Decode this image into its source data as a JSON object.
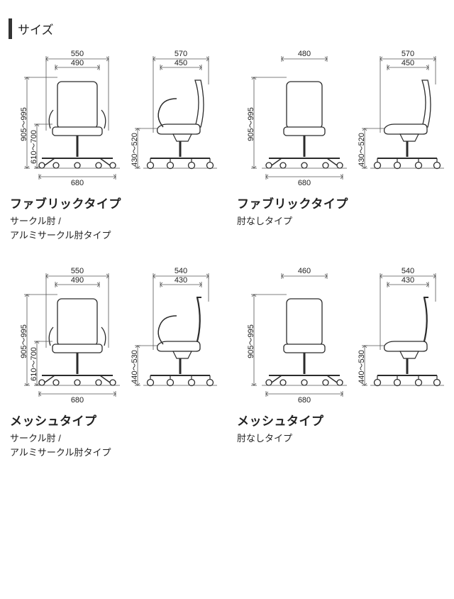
{
  "title": "サイズ",
  "stroke_color": "#2b2b2b",
  "fill_color": "#ffffff",
  "dim_stroke": "#555555",
  "dim_text_color": "#222222",
  "line_width_main": 1.3,
  "line_width_dim": 0.8,
  "dim_fontsize": 11,
  "cells": [
    {
      "name": "ファブリックタイプ",
      "sub": "サークル肘 /\nアルミサークル肘タイプ",
      "has_arm": true,
      "is_mesh": false,
      "front": {
        "top_outer": 550,
        "top_inner": 490,
        "base": 680,
        "h_outer": "905～995",
        "h_inner": "610～700"
      },
      "side": {
        "top_outer": 570,
        "top_inner": 450,
        "seat_h": "430～520"
      }
    },
    {
      "name": "ファブリックタイプ",
      "sub": "肘なしタイプ",
      "has_arm": false,
      "is_mesh": false,
      "front": {
        "top_outer": 480,
        "base": 680,
        "h_outer": "905～995"
      },
      "side": {
        "top_outer": 570,
        "top_inner": 450,
        "seat_h": "430～520"
      }
    },
    {
      "name": "メッシュタイプ",
      "sub": "サークル肘 /\nアルミサークル肘タイプ",
      "has_arm": true,
      "is_mesh": true,
      "front": {
        "top_outer": 550,
        "top_inner": 490,
        "base": 680,
        "h_outer": "905～995",
        "h_inner": "610～700"
      },
      "side": {
        "top_outer": 540,
        "top_inner": 430,
        "seat_h": "440～530"
      }
    },
    {
      "name": "メッシュタイプ",
      "sub": "肘なしタイプ",
      "has_arm": false,
      "is_mesh": true,
      "front": {
        "top_outer": 460,
        "base": 680,
        "h_outer": "905～995"
      },
      "side": {
        "top_outer": 540,
        "top_inner": 430,
        "seat_h": "440～530"
      }
    }
  ]
}
